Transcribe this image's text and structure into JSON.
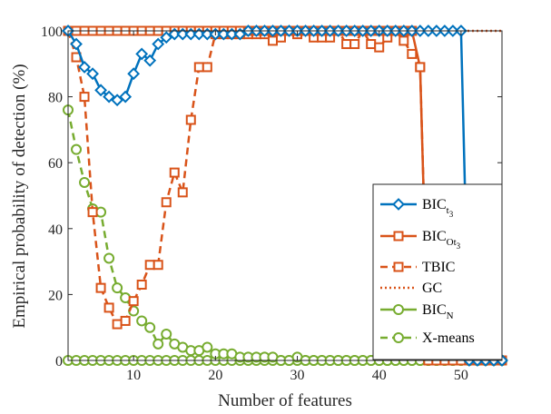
{
  "chart_data": {
    "type": "line",
    "title": "",
    "xlabel": "Number of features",
    "ylabel": "Empirical probability of detection (%)",
    "xlim": [
      2,
      55
    ],
    "ylim": [
      0,
      100
    ],
    "xticks": [
      10,
      20,
      30,
      40,
      50
    ],
    "yticks": [
      0,
      20,
      40,
      60,
      80,
      100
    ],
    "grid": false,
    "legend_position": "right",
    "x": [
      2,
      3,
      4,
      5,
      6,
      7,
      8,
      9,
      10,
      11,
      12,
      13,
      14,
      15,
      16,
      17,
      18,
      19,
      20,
      21,
      22,
      23,
      24,
      25,
      26,
      27,
      28,
      29,
      30,
      31,
      32,
      33,
      34,
      35,
      36,
      37,
      38,
      39,
      40,
      41,
      42,
      43,
      44,
      45,
      46,
      47,
      48,
      49,
      50,
      51,
      52,
      53,
      54,
      55
    ],
    "series": [
      {
        "name": "BIC_t3",
        "label_main": "BIC",
        "label_sub": "t",
        "label_subsub": "3",
        "color": "#0072BD",
        "line": "solid",
        "marker": "diamond",
        "values": [
          100,
          96,
          89,
          87,
          82,
          80,
          79,
          80,
          87,
          93,
          91,
          96,
          98,
          99,
          99,
          99,
          99,
          99,
          99,
          99,
          99,
          99,
          100,
          100,
          100,
          100,
          100,
          100,
          100,
          100,
          100,
          100,
          100,
          100,
          100,
          100,
          100,
          100,
          100,
          100,
          100,
          100,
          100,
          100,
          100,
          100,
          100,
          100,
          100,
          0,
          0,
          0,
          0,
          0
        ]
      },
      {
        "name": "BIC_Ot3",
        "label_main": "BIC",
        "label_sub": "Ot",
        "label_subsub": "3",
        "color": "#D95319",
        "line": "solid",
        "marker": "square",
        "values": [
          100,
          100,
          100,
          100,
          100,
          100,
          100,
          100,
          100,
          100,
          100,
          100,
          100,
          100,
          100,
          100,
          100,
          100,
          100,
          100,
          100,
          100,
          100,
          100,
          100,
          100,
          100,
          100,
          100,
          100,
          100,
          100,
          100,
          100,
          100,
          100,
          100,
          100,
          100,
          100,
          100,
          100,
          100,
          89,
          0,
          0,
          0,
          0,
          0,
          0,
          0,
          0,
          0,
          0
        ]
      },
      {
        "name": "TBIC",
        "label_main": "TBIC",
        "label_sub": "",
        "label_subsub": "",
        "color": "#D95319",
        "line": "dashed",
        "marker": "square",
        "values": [
          100,
          92,
          80,
          45,
          22,
          16,
          11,
          12,
          18,
          23,
          29,
          29,
          48,
          57,
          51,
          73,
          89,
          89,
          99,
          99,
          99,
          99,
          99,
          99,
          99,
          97,
          98,
          100,
          99,
          100,
          98,
          98,
          98,
          100,
          96,
          96,
          100,
          96,
          95,
          98,
          100,
          97,
          93,
          89,
          2,
          0,
          0,
          0,
          0,
          0,
          0,
          0,
          0,
          0
        ]
      },
      {
        "name": "GC",
        "label_main": "GC",
        "label_sub": "",
        "label_subsub": "",
        "color": "#D95319",
        "line": "dotted",
        "marker": "none",
        "values": [
          100,
          100,
          100,
          100,
          100,
          100,
          100,
          100,
          100,
          100,
          100,
          100,
          100,
          100,
          100,
          100,
          100,
          100,
          100,
          100,
          100,
          100,
          100,
          100,
          100,
          100,
          100,
          100,
          100,
          100,
          100,
          100,
          100,
          100,
          100,
          100,
          100,
          100,
          100,
          100,
          100,
          100,
          100,
          100,
          100,
          100,
          100,
          100,
          100,
          100,
          100,
          100,
          100,
          100
        ]
      },
      {
        "name": "BIC_N",
        "label_main": "BIC",
        "label_sub": "N",
        "label_subsub": "",
        "color": "#77AC30",
        "line": "solid",
        "marker": "circle",
        "values": [
          0,
          0,
          0,
          0,
          0,
          0,
          0,
          0,
          0,
          0,
          0,
          0,
          0,
          0,
          0,
          0,
          0,
          0,
          0,
          0,
          0,
          0,
          0,
          0,
          0,
          0,
          0,
          0,
          0,
          0,
          0,
          0,
          0,
          0,
          0,
          0,
          0,
          0,
          0,
          0,
          0,
          0,
          0,
          0,
          0,
          0,
          0,
          0,
          0,
          0,
          0,
          0,
          0,
          0
        ]
      },
      {
        "name": "X-means",
        "label_main": "X-means",
        "label_sub": "",
        "label_subsub": "",
        "color": "#77AC30",
        "line": "dashed",
        "marker": "circle",
        "values": [
          76,
          64,
          54,
          46,
          45,
          31,
          22,
          19,
          15,
          12,
          10,
          5,
          8,
          5,
          4,
          3,
          3,
          4,
          2,
          2,
          2,
          1,
          1,
          1,
          1,
          1,
          0,
          0,
          1,
          0,
          0,
          0,
          0,
          0,
          0,
          0,
          0,
          0,
          0,
          0,
          0,
          0,
          0,
          0,
          0,
          0,
          0,
          0,
          0,
          0,
          0,
          0,
          0,
          0
        ]
      }
    ]
  }
}
